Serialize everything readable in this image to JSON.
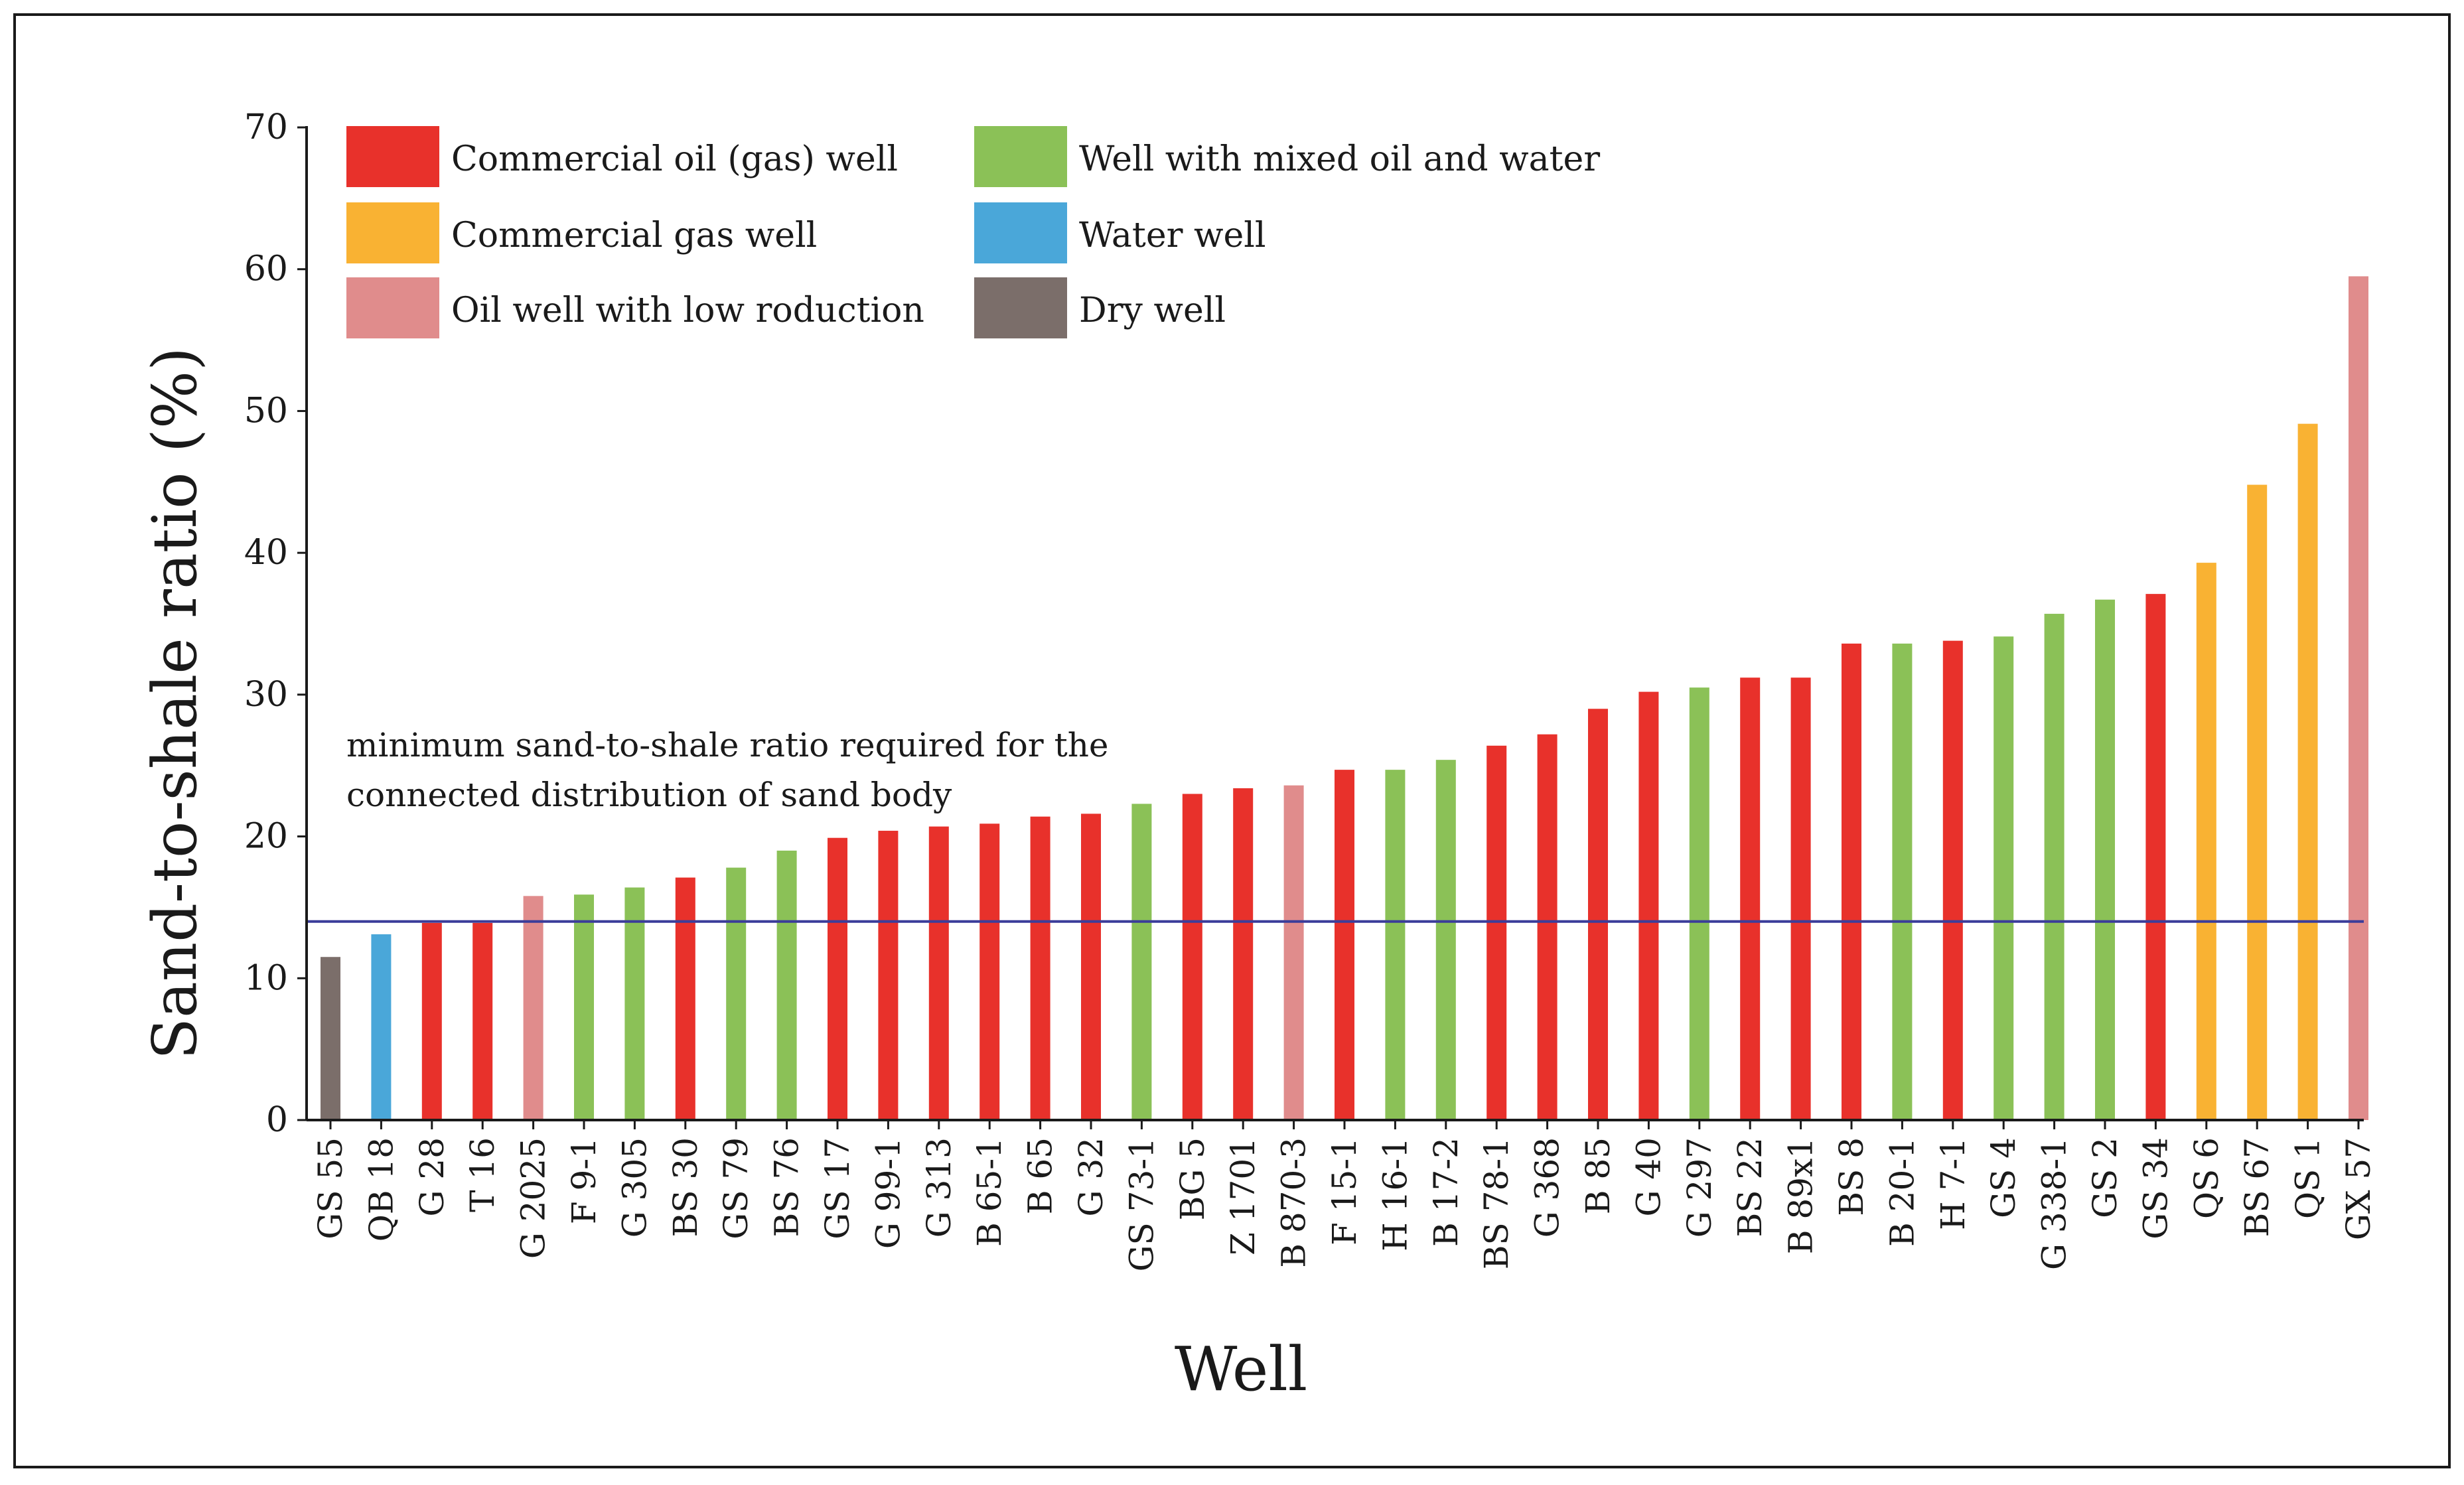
{
  "chart_data": {
    "type": "bar",
    "title": "",
    "xlabel": "Well",
    "ylabel": "Sand-to-shale ratio (%)",
    "ylim": [
      0,
      70
    ],
    "yticks": [
      0,
      10,
      20,
      30,
      40,
      50,
      60,
      70
    ],
    "grid": false,
    "legend_position": "top-left",
    "categories": [
      "GS 55",
      "QB 18",
      "G 28",
      "T 16",
      "G 2025",
      "F 9-1",
      "G 305",
      "BS 30",
      "GS 79",
      "BS 76",
      "GS 17",
      "G 99-1",
      "G 313",
      "B 65-1",
      "B 65",
      "G 32",
      "GS 73-1",
      "BG 5",
      "Z 1701",
      "B 870-3",
      "F 15-1",
      "H 16-1",
      "B 17-2",
      "BS 78-1",
      "G 368",
      "B 85",
      "G 40",
      "G 297",
      "BS 22",
      "B 89x1",
      "BS 8",
      "B 20-1",
      "H 7-1",
      "GS 4",
      "G 338-1",
      "GS 2",
      "GS 34",
      "QS 6",
      "BS 67",
      "QS 1",
      "GX 57"
    ],
    "values": [
      11.5,
      13.1,
      13.9,
      13.9,
      15.8,
      15.9,
      16.4,
      17.1,
      17.8,
      19.0,
      19.9,
      20.4,
      20.7,
      20.9,
      21.4,
      21.6,
      22.3,
      23.0,
      23.4,
      23.6,
      24.7,
      24.7,
      25.4,
      26.4,
      27.2,
      29.0,
      30.2,
      30.5,
      31.2,
      31.2,
      33.6,
      33.6,
      33.8,
      34.1,
      35.7,
      36.7,
      37.1,
      39.3,
      44.8,
      49.1,
      59.5
    ],
    "well_types": [
      "dry",
      "water",
      "oil_gas",
      "oil_gas",
      "low_production",
      "mixed",
      "mixed",
      "oil_gas",
      "mixed",
      "mixed",
      "oil_gas",
      "oil_gas",
      "oil_gas",
      "oil_gas",
      "oil_gas",
      "oil_gas",
      "mixed",
      "oil_gas",
      "oil_gas",
      "low_production",
      "oil_gas",
      "mixed",
      "mixed",
      "oil_gas",
      "oil_gas",
      "oil_gas",
      "oil_gas",
      "mixed",
      "oil_gas",
      "oil_gas",
      "oil_gas",
      "mixed",
      "oil_gas",
      "mixed",
      "mixed",
      "mixed",
      "oil_gas",
      "gas",
      "gas",
      "gas",
      "low_production"
    ],
    "colors": {
      "oil_gas": "#e8312b",
      "mixed": "#8bc157",
      "gas": "#f9b233",
      "water": "#4aa7d9",
      "low_production": "#e08c8c",
      "dry": "#7b6e6a",
      "threshold_line": "#3b3d9a",
      "axis": "#1a1a1a"
    },
    "legend": [
      {
        "key": "oil_gas",
        "label": "Commercial oil (gas) well"
      },
      {
        "key": "mixed",
        "label": "Well  with mixed oil and water"
      },
      {
        "key": "gas",
        "label": "Commercial gas well"
      },
      {
        "key": "water",
        "label": "Water well"
      },
      {
        "key": "low_production",
        "label": "Oil well with low roduction"
      },
      {
        "key": "dry",
        "label": "Dry well"
      }
    ],
    "threshold": {
      "value": 14,
      "label_line1": "minimum sand-to-shale ratio required for the",
      "label_line2": "connected distribution of sand body"
    }
  }
}
